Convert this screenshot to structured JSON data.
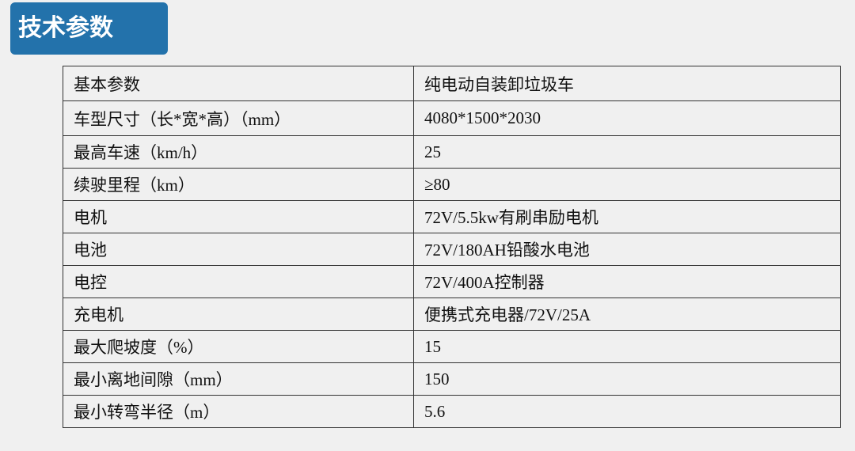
{
  "title": "技术参数",
  "table": {
    "rows": [
      {
        "label": "基本参数",
        "value": "纯电动自装卸垃圾车"
      },
      {
        "label": "车型尺寸（长*宽*高）（mm）",
        "value": "4080*1500*2030"
      },
      {
        "label": "最高车速（km/h）",
        "value": "25"
      },
      {
        "label": "续驶里程（km）",
        "value": "≥80"
      },
      {
        "label": "电机",
        "value": "72V/5.5kw有刷串励电机"
      },
      {
        "label": "电池",
        "value": "72V/180AH铅酸水电池"
      },
      {
        "label": "电控",
        "value": "72V/400A控制器"
      },
      {
        "label": "充电机",
        "value": "便携式充电器/72V/25A"
      },
      {
        "label": "最大爬坡度（%）",
        "value": "15"
      },
      {
        "label": "最小离地间隙（mm）",
        "value": "150"
      },
      {
        "label": "最小转弯半径（m）",
        "value": "5.6"
      }
    ]
  }
}
